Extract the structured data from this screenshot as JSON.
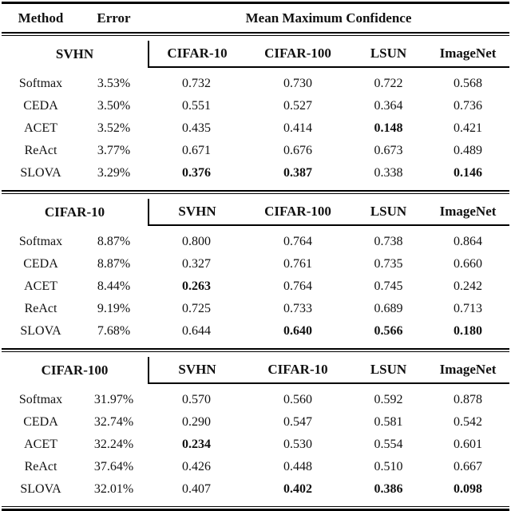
{
  "header": {
    "method": "Method",
    "error": "Error",
    "confidence": "Mean Maximum Confidence"
  },
  "blocks": [
    {
      "dataset": "SVHN",
      "columns": [
        "CIFAR-10",
        "CIFAR-100",
        "LSUN",
        "ImageNet"
      ],
      "rows": [
        {
          "method": "Softmax",
          "error": "3.53%",
          "values": [
            "0.732",
            "0.730",
            "0.722",
            "0.568"
          ],
          "bold": [
            false,
            false,
            false,
            false
          ]
        },
        {
          "method": "CEDA",
          "error": "3.50%",
          "values": [
            "0.551",
            "0.527",
            "0.364",
            "0.736"
          ],
          "bold": [
            false,
            false,
            false,
            false
          ]
        },
        {
          "method": "ACET",
          "error": "3.52%",
          "values": [
            "0.435",
            "0.414",
            "0.148",
            "0.421"
          ],
          "bold": [
            false,
            false,
            true,
            false
          ]
        },
        {
          "method": "ReAct",
          "error": "3.77%",
          "values": [
            "0.671",
            "0.676",
            "0.673",
            "0.489"
          ],
          "bold": [
            false,
            false,
            false,
            false
          ]
        },
        {
          "method": "SLOVA",
          "error": "3.29%",
          "values": [
            "0.376",
            "0.387",
            "0.338",
            "0.146"
          ],
          "bold": [
            true,
            true,
            false,
            true
          ]
        }
      ]
    },
    {
      "dataset": "CIFAR-10",
      "columns": [
        "SVHN",
        "CIFAR-100",
        "LSUN",
        "ImageNet"
      ],
      "rows": [
        {
          "method": "Softmax",
          "error": "8.87%",
          "values": [
            "0.800",
            "0.764",
            "0.738",
            "0.864"
          ],
          "bold": [
            false,
            false,
            false,
            false
          ]
        },
        {
          "method": "CEDA",
          "error": "8.87%",
          "values": [
            "0.327",
            "0.761",
            "0.735",
            "0.660"
          ],
          "bold": [
            false,
            false,
            false,
            false
          ]
        },
        {
          "method": "ACET",
          "error": "8.44%",
          "values": [
            "0.263",
            "0.764",
            "0.745",
            "0.242"
          ],
          "bold": [
            true,
            false,
            false,
            false
          ]
        },
        {
          "method": "ReAct",
          "error": "9.19%",
          "values": [
            "0.725",
            "0.733",
            "0.689",
            "0.713"
          ],
          "bold": [
            false,
            false,
            false,
            false
          ]
        },
        {
          "method": "SLOVA",
          "error": "7.68%",
          "values": [
            "0.644",
            "0.640",
            "0.566",
            "0.180"
          ],
          "bold": [
            false,
            true,
            true,
            true
          ]
        }
      ]
    },
    {
      "dataset": "CIFAR-100",
      "columns": [
        "SVHN",
        "CIFAR-10",
        "LSUN",
        "ImageNet"
      ],
      "rows": [
        {
          "method": "Softmax",
          "error": "31.97%",
          "values": [
            "0.570",
            "0.560",
            "0.592",
            "0.878"
          ],
          "bold": [
            false,
            false,
            false,
            false
          ]
        },
        {
          "method": "CEDA",
          "error": "32.74%",
          "values": [
            "0.290",
            "0.547",
            "0.581",
            "0.542"
          ],
          "bold": [
            false,
            false,
            false,
            false
          ]
        },
        {
          "method": "ACET",
          "error": "32.24%",
          "values": [
            "0.234",
            "0.530",
            "0.554",
            "0.601"
          ],
          "bold": [
            true,
            false,
            false,
            false
          ]
        },
        {
          "method": "ReAct",
          "error": "37.64%",
          "values": [
            "0.426",
            "0.448",
            "0.510",
            "0.667"
          ],
          "bold": [
            false,
            false,
            false,
            false
          ]
        },
        {
          "method": "SLOVA",
          "error": "32.01%",
          "values": [
            "0.407",
            "0.402",
            "0.386",
            "0.098"
          ],
          "bold": [
            false,
            true,
            true,
            true
          ]
        }
      ]
    }
  ]
}
